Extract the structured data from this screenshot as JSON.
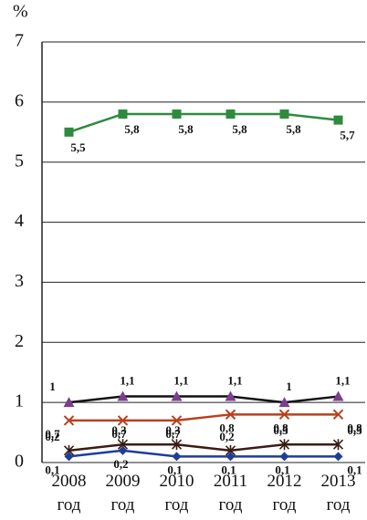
{
  "chart_data": {
    "type": "line",
    "y_unit_label": "%",
    "categories": [
      "2008 год",
      "2009 год",
      "2010 год",
      "2011 год",
      "2012 год",
      "2013 год"
    ],
    "ylim": [
      0,
      7
    ],
    "yticks": [
      0,
      1,
      2,
      3,
      4,
      5,
      6,
      7
    ],
    "grid": true,
    "series": [
      {
        "color": "#2e8b3e",
        "line_color": "#2e8b3e",
        "marker": "square",
        "values": [
          5.5,
          5.8,
          5.8,
          5.8,
          5.8,
          5.7
        ],
        "value_labels": [
          "5,5",
          "5,8",
          "5,8",
          "5,8",
          "5,8",
          "5,7"
        ]
      },
      {
        "color": "#7a3f8f",
        "line_color": "#111111",
        "marker": "triangle",
        "values": [
          1,
          1.1,
          1.1,
          1.1,
          1,
          1.1
        ],
        "value_labels": [
          "1",
          "1,1",
          "1,1",
          "1,1",
          "1",
          "1,1"
        ]
      },
      {
        "color": "#b8401e",
        "line_color": "#b8401e",
        "marker": "x",
        "values": [
          0.7,
          0.7,
          0.7,
          0.8,
          0.8,
          0.8
        ],
        "value_labels": [
          "0,7",
          "0,7",
          "0,7",
          "0,8",
          "0,8",
          "0,8"
        ]
      },
      {
        "color": "#3a1c14",
        "line_color": "#3a1c14",
        "marker": "star",
        "values": [
          0.2,
          0.3,
          0.3,
          0.2,
          0.3,
          0.3
        ],
        "value_labels": [
          "0,2",
          "0,3",
          "0,3",
          "0,2",
          "0,3",
          "0,3"
        ]
      },
      {
        "color": "#1f3c99",
        "line_color": "#1f3c99",
        "marker": "diamond",
        "values": [
          0.1,
          0.2,
          0.1,
          0.1,
          0.1,
          0.1
        ],
        "value_labels": [
          "0,1",
          "0,2",
          "0,1",
          "0,1",
          "0,1",
          "0,1"
        ]
      }
    ]
  }
}
